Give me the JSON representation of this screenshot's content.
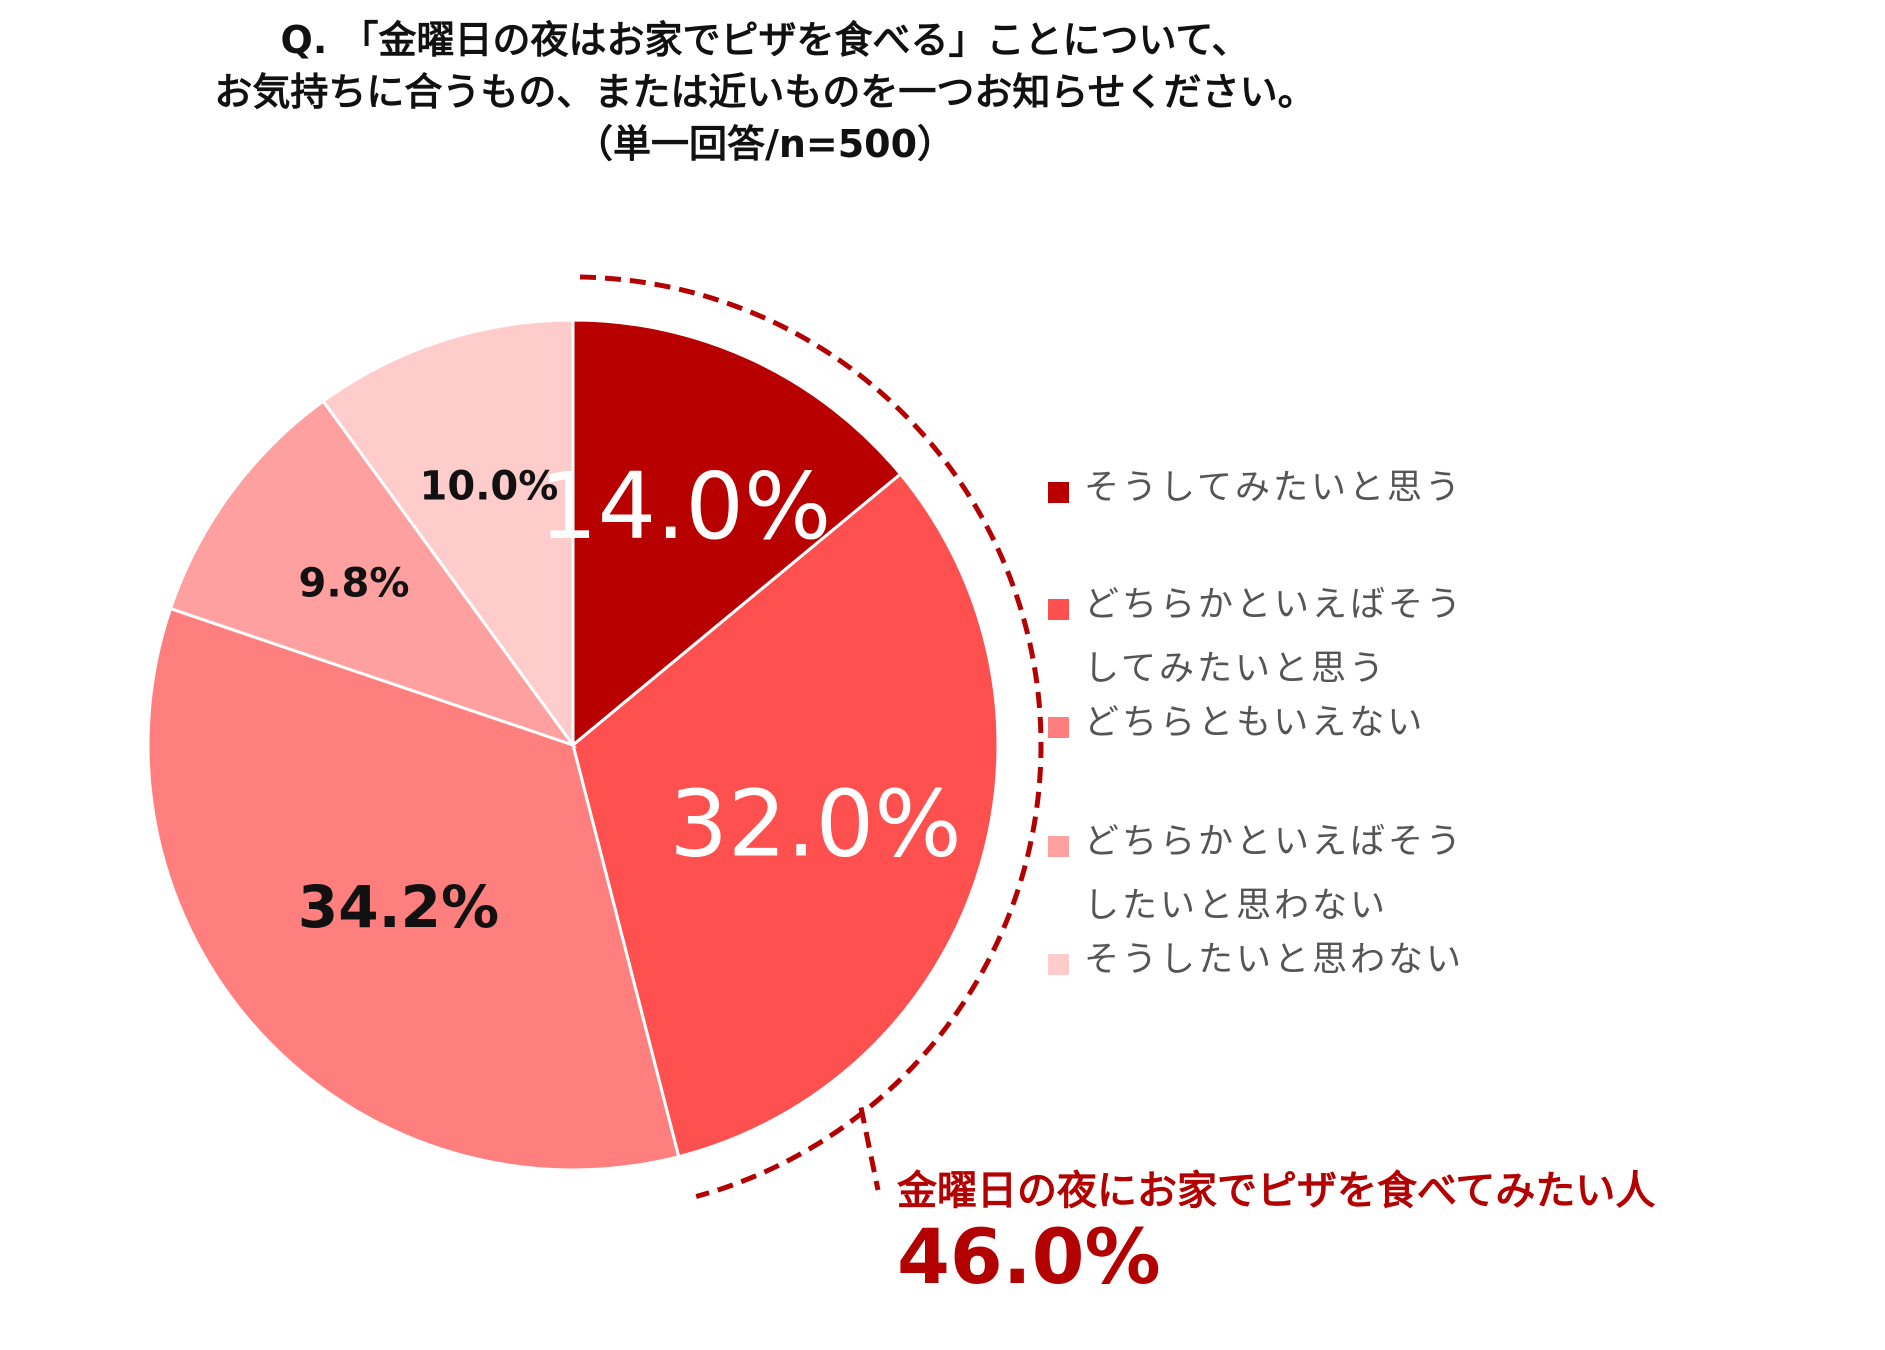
{
  "title_lines": [
    "Q. 「金曜日の夜はお家でピザを食べる」ことについて、",
    "お気持ちに合うもの、または近いものを一つお知らせください。",
    "（単一回答/n=500）"
  ],
  "chart_data": {
    "type": "pie",
    "title": "Q. 「金曜日の夜はお家でピザを食べる」ことについて、お気持ちに合うもの、または近いものを一つお知らせください。（単一回答/n=500）",
    "slices": [
      {
        "label": "そうしてみたいと思う",
        "value": 14.0,
        "display": "14.0%",
        "color": "#b80000",
        "label_color": "#ffffff"
      },
      {
        "label": "どちらかといえばそうしてみたいと思う",
        "value": 32.0,
        "display": "32.0%",
        "color": "#ff5050",
        "label_color": "#ffffff"
      },
      {
        "label": "どちらともいえない",
        "value": 34.2,
        "display": "34.2%",
        "color": "#ff7f7f",
        "label_color": "#111111"
      },
      {
        "label": "どちらかといえばそうしたいと思わない",
        "value": 9.8,
        "display": "9.8%",
        "color": "#ffa0a0",
        "label_color": "#111111"
      },
      {
        "label": "そうしたいと思わない",
        "value": 10.0,
        "display": "10.0%",
        "color": "#ffcccc",
        "label_color": "#111111"
      }
    ],
    "start": "12 o'clock, clockwise",
    "legend_position": "right"
  },
  "legend": [
    {
      "lines": [
        "そうしてみたいと思う"
      ],
      "color": "#b80000"
    },
    {
      "lines": [
        "どちらかといえばそう",
        "してみたいと思う"
      ],
      "color": "#ff5050"
    },
    {
      "lines": [
        "どちらともいえない"
      ],
      "color": "#ff7f7f"
    },
    {
      "lines": [
        "どちらかといえばそう",
        "したいと思わない"
      ],
      "color": "#ffa0a0"
    },
    {
      "lines": [
        "そうしたいと思わない"
      ],
      "color": "#ffcccc"
    }
  ],
  "callout": {
    "label": "金曜日の夜にお家でピザを食べてみたい人",
    "value": "46.0%",
    "color": "#b30000"
  }
}
